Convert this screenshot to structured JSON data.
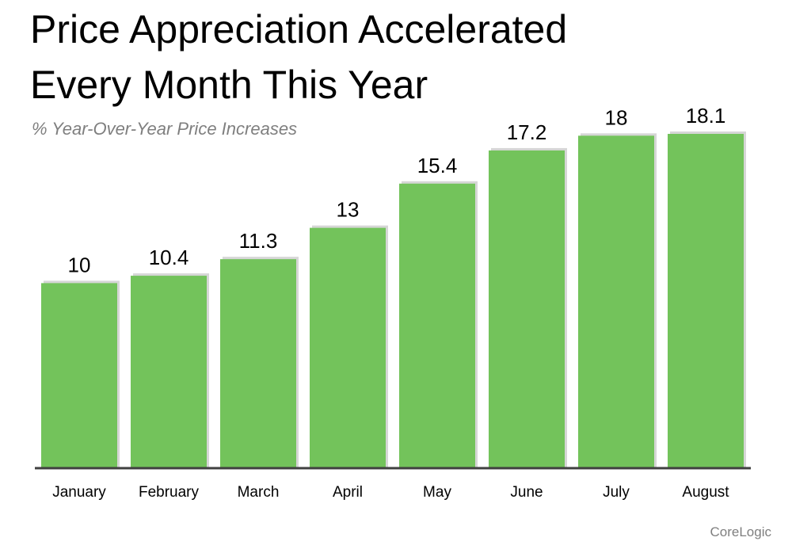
{
  "header": {
    "title_line1": "Price Appreciation Accelerated",
    "title_line2": "Every Month This Year",
    "subtitle": "% Year-Over-Year Price Increases"
  },
  "footer": {
    "source": "CoreLogic"
  },
  "colors": {
    "bar": "#73c35b",
    "title": "#000000",
    "subtitle": "#7f7f7f",
    "baseline": "#404040"
  },
  "chart_data": {
    "type": "bar",
    "title": "Price Appreciation Accelerated Every Month This Year",
    "subtitle": "% Year-Over-Year Price Increases",
    "categories": [
      "January",
      "February",
      "March",
      "April",
      "May",
      "June",
      "July",
      "August"
    ],
    "values": [
      10,
      10.4,
      11.3,
      13,
      15.4,
      17.2,
      18,
      18.1
    ],
    "value_labels": [
      "10",
      "10.4",
      "11.3",
      "13",
      "15.4",
      "17.2",
      "18",
      "18.1"
    ],
    "xlabel": "",
    "ylabel": "",
    "ylim": [
      0,
      18.1
    ],
    "grid": false,
    "legend": "none"
  }
}
